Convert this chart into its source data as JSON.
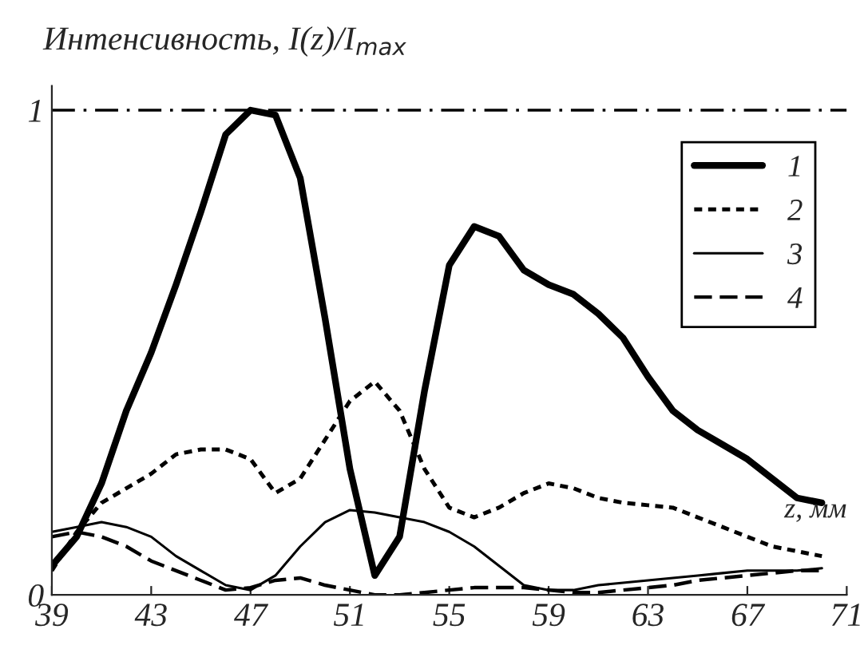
{
  "chart_data": {
    "type": "line",
    "ylabel": "Интенсивность, I(z)/I$_{max}$",
    "xlabel": "z, мм",
    "x": [
      39,
      40,
      41,
      42,
      43,
      44,
      45,
      46,
      47,
      48,
      49,
      50,
      51,
      52,
      53,
      54,
      55,
      56,
      57,
      58,
      59,
      60,
      61,
      62,
      63,
      64,
      65,
      66,
      67,
      68,
      69,
      70
    ],
    "series": [
      {
        "name": "1",
        "color": "#000000",
        "line_style": "solid",
        "values": [
          0.06,
          0.12,
          0.23,
          0.38,
          0.5,
          0.64,
          0.79,
          0.95,
          1.0,
          0.99,
          0.86,
          0.57,
          0.26,
          0.04,
          0.12,
          0.42,
          0.68,
          0.76,
          0.74,
          0.67,
          0.64,
          0.62,
          0.58,
          0.53,
          0.45,
          0.38,
          0.34,
          0.31,
          0.28,
          0.24,
          0.2,
          0.19
        ]
      },
      {
        "name": "2",
        "color": "#000000",
        "line_style": "dotted",
        "values": [
          0.05,
          0.13,
          0.19,
          0.22,
          0.25,
          0.29,
          0.3,
          0.3,
          0.28,
          0.21,
          0.24,
          0.32,
          0.4,
          0.44,
          0.38,
          0.26,
          0.18,
          0.16,
          0.18,
          0.21,
          0.23,
          0.22,
          0.2,
          0.19,
          0.185,
          0.18,
          0.16,
          0.14,
          0.12,
          0.1,
          0.09,
          0.08
        ]
      },
      {
        "name": "3",
        "color": "#000000",
        "line_style": "solid",
        "values": [
          0.13,
          0.14,
          0.15,
          0.14,
          0.12,
          0.08,
          0.05,
          0.02,
          0.01,
          0.04,
          0.1,
          0.15,
          0.175,
          0.17,
          0.16,
          0.15,
          0.13,
          0.1,
          0.06,
          0.02,
          0.01,
          0.01,
          0.02,
          0.025,
          0.03,
          0.035,
          0.04,
          0.045,
          0.05,
          0.05,
          0.05,
          0.055
        ]
      },
      {
        "name": "4",
        "color": "#000000",
        "line_style": "dashed",
        "values": [
          0.12,
          0.13,
          0.12,
          0.1,
          0.07,
          0.05,
          0.03,
          0.01,
          0.015,
          0.03,
          0.035,
          0.02,
          0.01,
          0.0,
          0.0,
          0.005,
          0.01,
          0.015,
          0.015,
          0.015,
          0.01,
          0.005,
          0.005,
          0.01,
          0.015,
          0.02,
          0.03,
          0.035,
          0.04,
          0.045,
          0.05,
          0.05
        ]
      }
    ],
    "xlim": [
      39,
      71
    ],
    "ylim": [
      0,
      1.05
    ],
    "xticks": [
      39,
      43,
      47,
      51,
      55,
      59,
      63,
      67,
      71
    ],
    "yticks": [
      0,
      1
    ],
    "ref_lines": [
      {
        "axis": "y",
        "value": 1,
        "color": "#000000",
        "line_style": "dashdot"
      }
    ],
    "legend": "top right",
    "grid": false
  }
}
